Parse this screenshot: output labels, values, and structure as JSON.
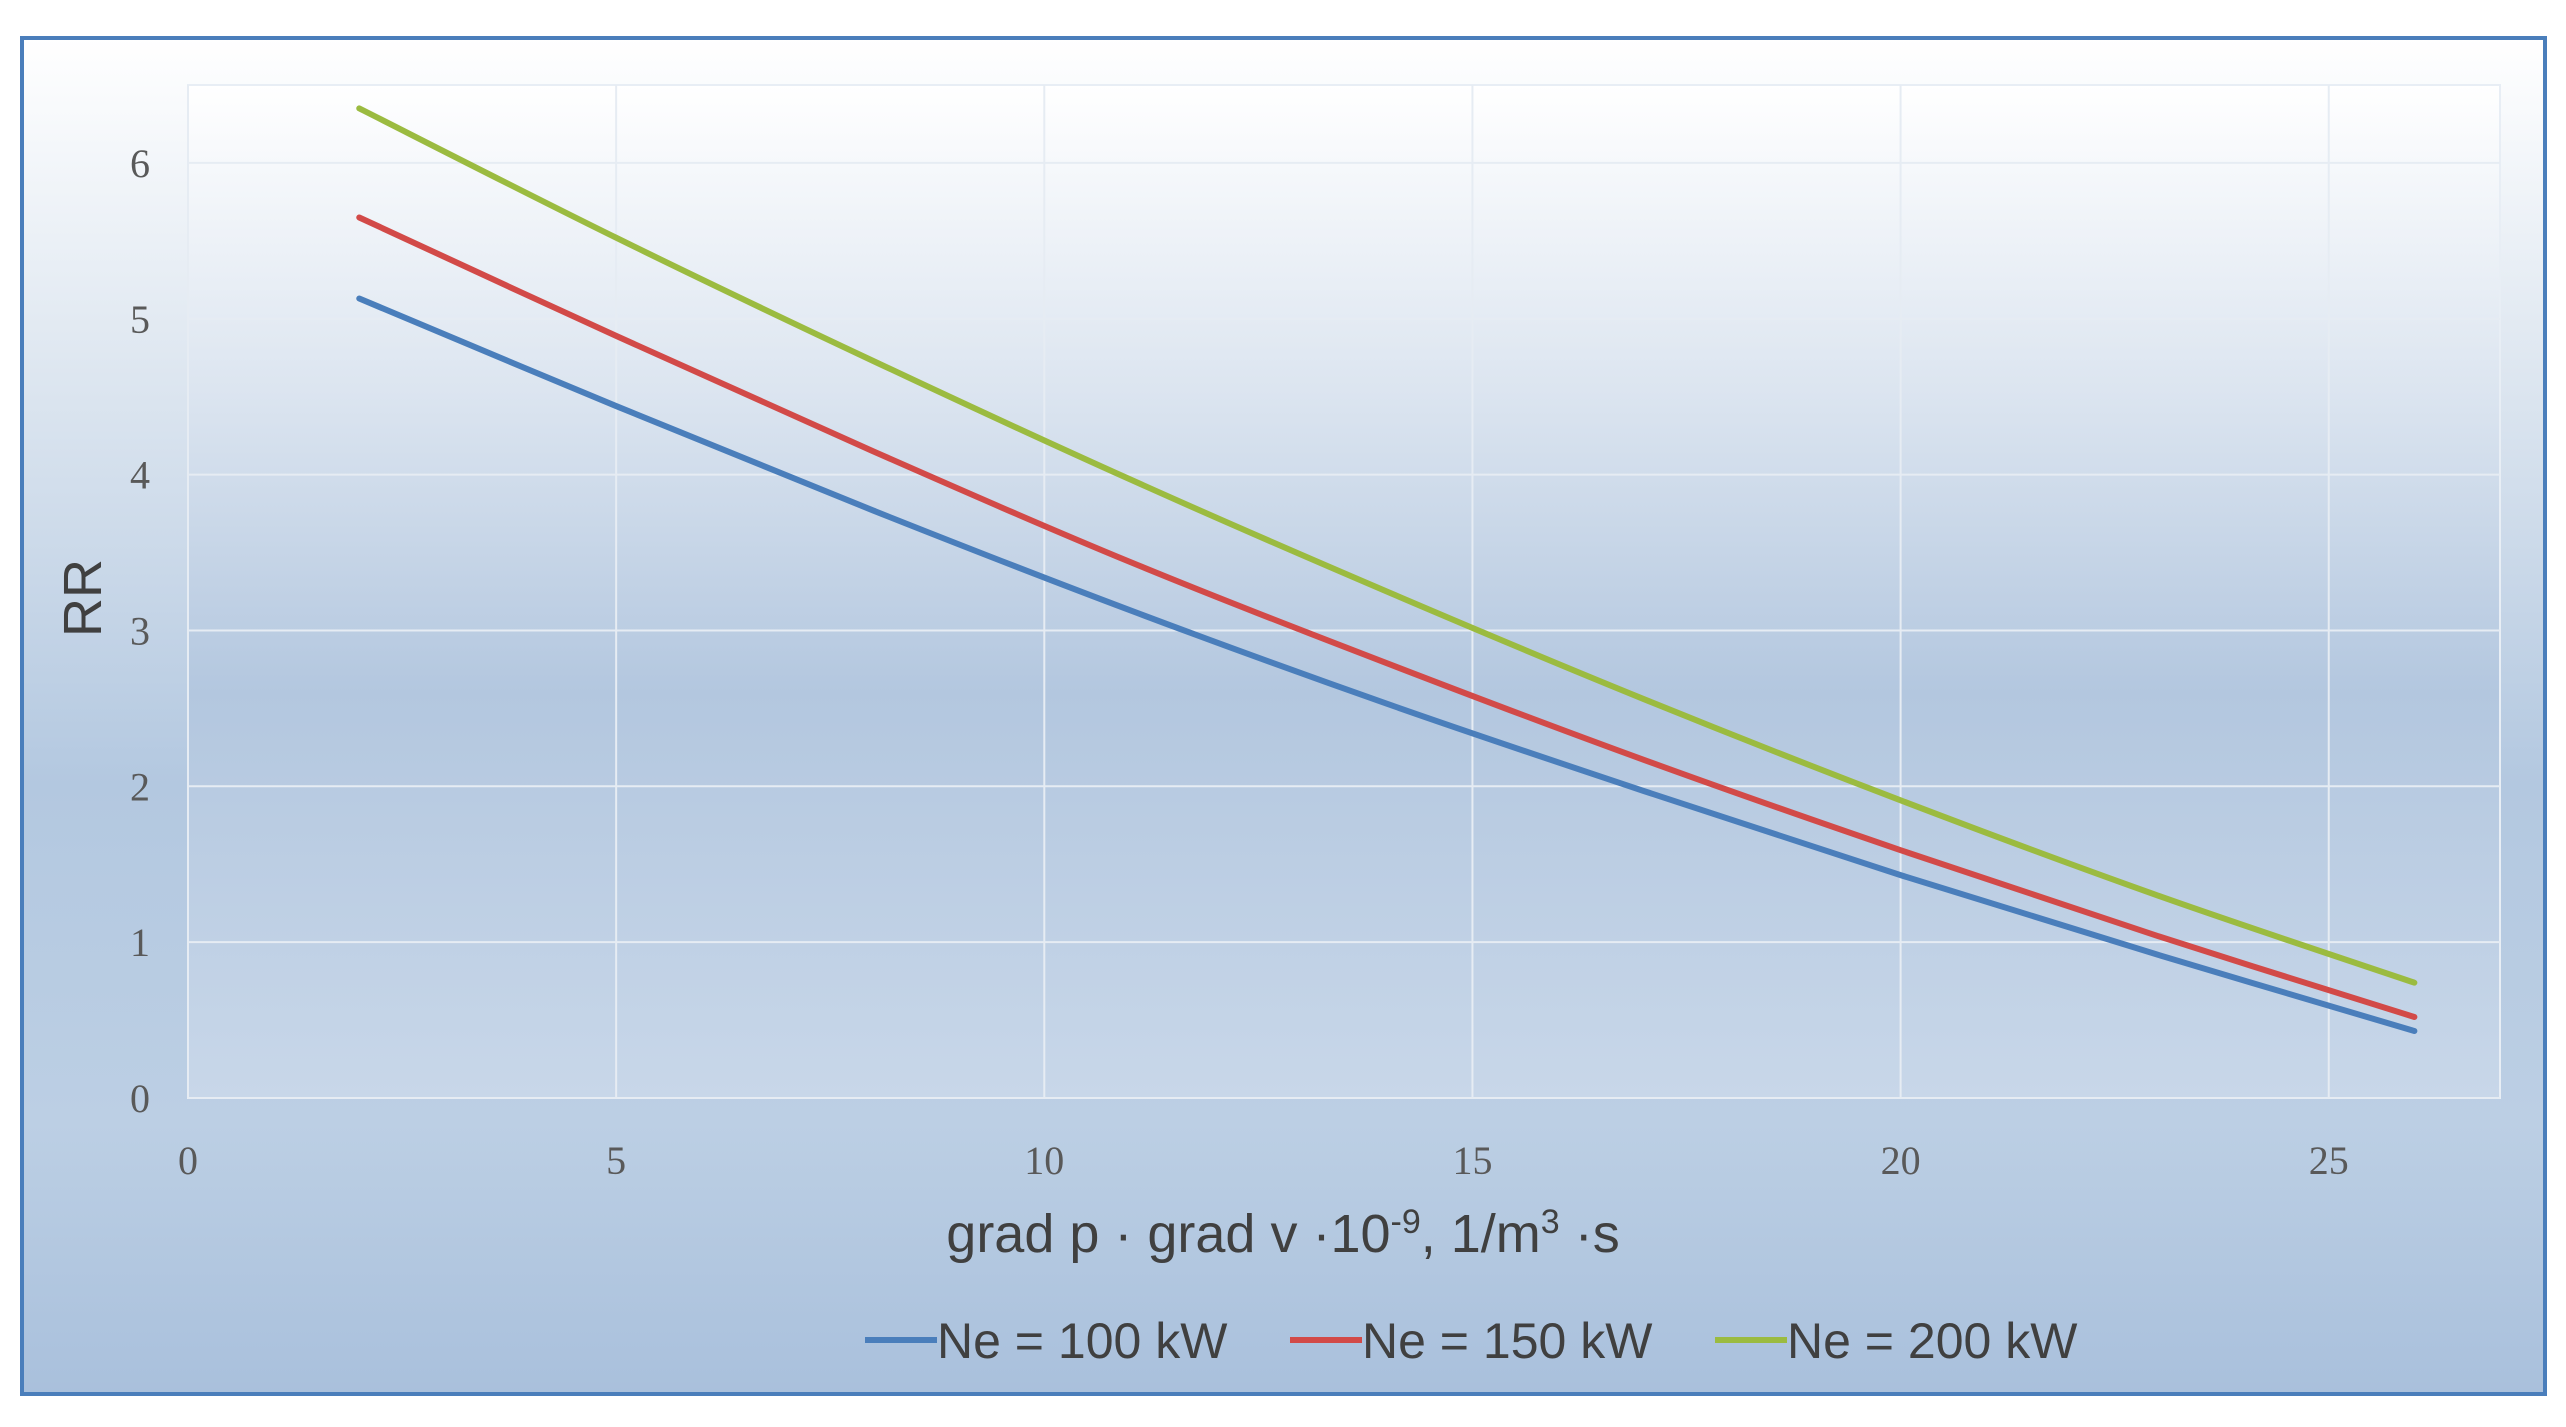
{
  "chart_data": {
    "type": "line",
    "xlabel": {
      "main": "grad p · grad v ·10",
      "sup1": "-9",
      "mid": ", 1/m",
      "sup2": "3",
      "end": " ·s"
    },
    "ylabel": "RR",
    "xlim": [
      0,
      27
    ],
    "ylim": [
      0,
      6.5
    ],
    "x_ticks": [
      0,
      5,
      10,
      15,
      20,
      25
    ],
    "y_ticks": [
      0,
      1,
      2,
      3,
      4,
      5,
      6
    ],
    "grid": true,
    "legend": "bottom",
    "series": [
      {
        "name": "Ne = 100 kW",
        "color": "#4a7ebb",
        "x": [
          2,
          5,
          8,
          11,
          14,
          17,
          20,
          23,
          26
        ],
        "y": [
          5.13,
          4.44,
          3.77,
          3.13,
          2.53,
          1.97,
          1.43,
          0.92,
          0.43
        ]
      },
      {
        "name": "Ne = 150 kW",
        "color": "#d24a48",
        "x": [
          2,
          5,
          8,
          11,
          14,
          17,
          20,
          23,
          26
        ],
        "y": [
          5.65,
          4.89,
          4.15,
          3.44,
          2.79,
          2.17,
          1.59,
          1.04,
          0.52
        ]
      },
      {
        "name": "Ne = 200 kW",
        "color": "#9bbb40",
        "x": [
          2,
          5,
          8,
          11,
          14,
          17,
          20,
          23,
          26
        ],
        "y": [
          6.35,
          5.52,
          4.73,
          3.97,
          3.25,
          2.56,
          1.91,
          1.3,
          0.74
        ]
      }
    ]
  }
}
